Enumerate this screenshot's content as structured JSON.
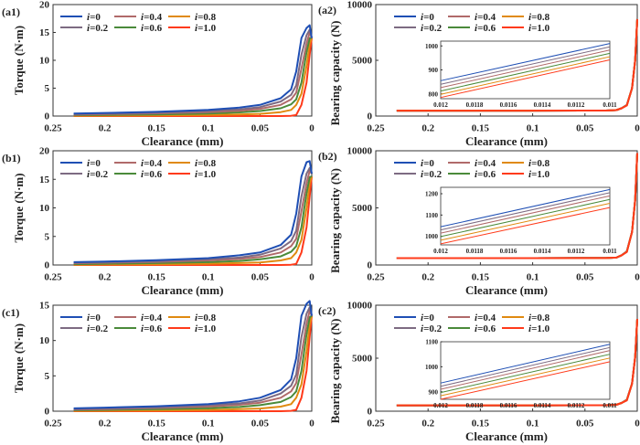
{
  "chart_data": [
    {
      "panel": "(a1)",
      "type": "line",
      "xlabel": "Clearance (mm)",
      "ylabel": "Torque (N·m)",
      "xlim": [
        0.25,
        0
      ],
      "ylim": [
        0,
        20
      ],
      "x_reversed": true,
      "xticks": [
        "0.25",
        "0.2",
        "0.15",
        "0.1",
        "0.05",
        "0"
      ],
      "yticks": [
        "0",
        "5",
        "10",
        "15",
        "20"
      ],
      "x": [
        0.23,
        0.2,
        0.15,
        0.1,
        0.07,
        0.05,
        0.03,
        0.02,
        0.015,
        0.01,
        0.005,
        0.002,
        0
      ],
      "series": [
        {
          "name": "i=0",
          "values": [
            0.45,
            0.55,
            0.75,
            1.1,
            1.5,
            2.0,
            3.2,
            4.8,
            8,
            14,
            15.8,
            16.3,
            14
          ]
        },
        {
          "name": "i=0.2",
          "values": [
            0.35,
            0.45,
            0.6,
            0.9,
            1.2,
            1.6,
            2.6,
            3.8,
            5.5,
            11,
            14.5,
            15.5,
            14
          ]
        },
        {
          "name": "i=0.4",
          "values": [
            0.25,
            0.35,
            0.5,
            0.7,
            0.95,
            1.3,
            2.0,
            3.0,
            4.2,
            8.5,
            13,
            15,
            14
          ]
        },
        {
          "name": "i=0.6",
          "values": [
            0.15,
            0.2,
            0.3,
            0.45,
            0.65,
            0.9,
            1.4,
            2.1,
            3,
            6,
            11.5,
            14,
            14
          ]
        },
        {
          "name": "i=0.8",
          "values": [
            0.05,
            0.08,
            0.12,
            0.2,
            0.3,
            0.4,
            0.7,
            1.1,
            2.0,
            4,
            9,
            13,
            14
          ]
        },
        {
          "name": "i=1.0",
          "values": [
            0,
            0,
            0,
            0,
            0,
            0,
            0,
            0.05,
            0.2,
            2,
            6,
            11,
            14
          ]
        }
      ]
    },
    {
      "panel": "(a2)",
      "type": "line",
      "xlabel": "Clearance (mm)",
      "ylabel": "Bearing capacity (N)",
      "xlim": [
        0.25,
        0
      ],
      "ylim": [
        0,
        10000
      ],
      "x_reversed": true,
      "xticks": [
        "0.25",
        "0.2",
        "0.15",
        "0.1",
        "0.05",
        "0"
      ],
      "yticks": [
        "0",
        "5000",
        "10000"
      ],
      "x": [
        0.23,
        0.1,
        0.03,
        0.02,
        0.015,
        0.01,
        0.005,
        0.002,
        0
      ],
      "series": [
        {
          "name": "i=0",
          "values": [
            480,
            480,
            490,
            530,
            700,
            1000,
            2500,
            5000,
            8700
          ]
        },
        {
          "name": "i=0.2",
          "values": [
            480,
            480,
            490,
            530,
            700,
            990,
            2500,
            5000,
            8700
          ]
        },
        {
          "name": "i=0.4",
          "values": [
            480,
            480,
            490,
            530,
            700,
            980,
            2500,
            5000,
            8700
          ]
        },
        {
          "name": "i=0.6",
          "values": [
            480,
            480,
            490,
            530,
            700,
            970,
            2500,
            5000,
            8700
          ]
        },
        {
          "name": "i=0.8",
          "values": [
            480,
            480,
            490,
            530,
            700,
            960,
            2500,
            5000,
            8700
          ]
        },
        {
          "name": "i=1.0",
          "values": [
            480,
            480,
            490,
            530,
            700,
            950,
            2500,
            5000,
            8700
          ]
        }
      ],
      "inset": {
        "xlim": [
          0.012,
          0.011
        ],
        "ylim": [
          780,
          1020
        ],
        "xticks": [
          "0.012",
          "0.0118",
          "0.0116",
          "0.0114",
          "0.0112",
          "0.011"
        ],
        "yticks": [
          "800",
          "900",
          "1000"
        ],
        "x": [
          0.012,
          0.011
        ],
        "series": [
          [
            855,
            1010
          ],
          [
            840,
            996
          ],
          [
            826,
            983
          ],
          [
            812,
            969
          ],
          [
            798,
            955
          ],
          [
            785,
            942
          ]
        ]
      }
    },
    {
      "panel": "(b1)",
      "type": "line",
      "xlabel": "Clearance (mm)",
      "ylabel": "Torque (N·m)",
      "xlim": [
        0.25,
        0
      ],
      "ylim": [
        0,
        20
      ],
      "x_reversed": true,
      "xticks": [
        "0.25",
        "0.2",
        "0.15",
        "0.1",
        "0.05",
        "0"
      ],
      "yticks": [
        "0",
        "5",
        "10",
        "15",
        "20"
      ],
      "x": [
        0.23,
        0.2,
        0.15,
        0.1,
        0.07,
        0.05,
        0.03,
        0.02,
        0.015,
        0.01,
        0.005,
        0.002,
        0
      ],
      "series": [
        {
          "name": "i=0",
          "values": [
            0.5,
            0.6,
            0.85,
            1.2,
            1.7,
            2.2,
            3.5,
            5.3,
            9,
            15.5,
            18,
            18.2,
            16
          ]
        },
        {
          "name": "i=0.2",
          "values": [
            0.4,
            0.5,
            0.65,
            1.0,
            1.3,
            1.8,
            2.9,
            4.2,
            6,
            12,
            16,
            17,
            16
          ]
        },
        {
          "name": "i=0.4",
          "values": [
            0.3,
            0.4,
            0.55,
            0.8,
            1.05,
            1.4,
            2.2,
            3.3,
            4.6,
            9.4,
            14.3,
            16.5,
            16
          ]
        },
        {
          "name": "i=0.6",
          "values": [
            0.15,
            0.22,
            0.33,
            0.5,
            0.7,
            1.0,
            1.5,
            2.3,
            3.3,
            6.6,
            12.6,
            15.4,
            15.5
          ]
        },
        {
          "name": "i=0.8",
          "values": [
            0.05,
            0.09,
            0.13,
            0.22,
            0.33,
            0.44,
            0.8,
            1.2,
            2.2,
            4.4,
            10,
            14.3,
            15.5
          ]
        },
        {
          "name": "i=1.0",
          "values": [
            0,
            0,
            0,
            0,
            0,
            0,
            0,
            0.05,
            0.2,
            2.2,
            6.6,
            12,
            15.5
          ]
        }
      ]
    },
    {
      "panel": "(b2)",
      "type": "line",
      "xlabel": "Clearance (mm)",
      "ylabel": "Bearing capacity (N)",
      "xlim": [
        0.25,
        0
      ],
      "ylim": [
        0,
        10000
      ],
      "x_reversed": true,
      "xticks": [
        "0.25",
        "0.2",
        "0.15",
        "0.1",
        "0.05",
        "0"
      ],
      "yticks": [
        "0",
        "5000",
        "10000"
      ],
      "x": [
        0.23,
        0.1,
        0.03,
        0.02,
        0.015,
        0.01,
        0.005,
        0.002,
        0
      ],
      "series": [
        {
          "name": "i=0",
          "values": [
            600,
            600,
            610,
            650,
            850,
            1200,
            2900,
            5700,
            9800
          ]
        },
        {
          "name": "i=0.2",
          "values": [
            600,
            600,
            610,
            650,
            850,
            1190,
            2900,
            5700,
            9800
          ]
        },
        {
          "name": "i=0.4",
          "values": [
            600,
            600,
            610,
            650,
            850,
            1180,
            2900,
            5700,
            9800
          ]
        },
        {
          "name": "i=0.6",
          "values": [
            600,
            600,
            610,
            650,
            850,
            1165,
            2900,
            5700,
            9800
          ]
        },
        {
          "name": "i=0.8",
          "values": [
            600,
            600,
            610,
            650,
            850,
            1150,
            2900,
            5700,
            9800
          ]
        },
        {
          "name": "i=1.0",
          "values": [
            600,
            600,
            610,
            650,
            850,
            1135,
            2900,
            5700,
            9800
          ]
        }
      ],
      "inset": {
        "xlim": [
          0.012,
          0.011
        ],
        "ylim": [
          960,
          1230
        ],
        "xticks": [
          "0.012",
          "0.0118",
          "0.0116",
          "0.0114",
          "0.0112",
          "0.011"
        ],
        "yticks": [
          "1000",
          "1100",
          "1200"
        ],
        "x": [
          0.012,
          0.011
        ],
        "series": [
          [
            1045,
            1220
          ],
          [
            1030,
            1205
          ],
          [
            1015,
            1190
          ],
          [
            999,
            1173
          ],
          [
            982,
            1155
          ],
          [
            965,
            1135
          ]
        ]
      }
    },
    {
      "panel": "(c1)",
      "type": "line",
      "xlabel": "Clearance (mm)",
      "ylabel": "Torque (N·m)",
      "xlim": [
        0.25,
        0
      ],
      "ylim": [
        0,
        15
      ],
      "x_reversed": true,
      "xticks": [
        "0.25",
        "0.2",
        "0.15",
        "0.1",
        "0.05",
        "0"
      ],
      "yticks": [
        "0",
        "5",
        "10",
        "15"
      ],
      "x": [
        0.23,
        0.2,
        0.15,
        0.1,
        0.07,
        0.05,
        0.03,
        0.02,
        0.015,
        0.01,
        0.005,
        0.002,
        0
      ],
      "series": [
        {
          "name": "i=0",
          "values": [
            0.4,
            0.5,
            0.7,
            1.0,
            1.4,
            1.9,
            3.0,
            4.5,
            7.5,
            13.5,
            15.2,
            15.6,
            13.5
          ]
        },
        {
          "name": "i=0.2",
          "values": [
            0.3,
            0.4,
            0.55,
            0.85,
            1.1,
            1.5,
            2.5,
            3.6,
            5.2,
            10.5,
            13.8,
            14.7,
            13.5
          ]
        },
        {
          "name": "i=0.4",
          "values": [
            0.22,
            0.3,
            0.45,
            0.65,
            0.9,
            1.2,
            1.9,
            2.8,
            4.0,
            8,
            12.4,
            14.2,
            13.5
          ]
        },
        {
          "name": "i=0.6",
          "values": [
            0.13,
            0.18,
            0.28,
            0.43,
            0.6,
            0.85,
            1.3,
            2.0,
            2.8,
            5.7,
            10.9,
            13.3,
            13.5
          ]
        },
        {
          "name": "i=0.8",
          "values": [
            0.05,
            0.07,
            0.1,
            0.18,
            0.28,
            0.38,
            0.65,
            1.0,
            1.9,
            3.8,
            8.5,
            12.3,
            13.5
          ]
        },
        {
          "name": "i=1.0",
          "values": [
            0,
            0,
            0,
            0,
            0,
            0,
            0,
            0.05,
            0.2,
            1.9,
            5.7,
            10.5,
            13.5
          ]
        }
      ]
    },
    {
      "panel": "(c2)",
      "type": "line",
      "xlabel": "Clearance (mm)",
      "ylabel": "Bearing capacity (N)",
      "xlim": [
        0.25,
        0
      ],
      "ylim": [
        0,
        10000
      ],
      "x_reversed": true,
      "xticks": [
        "0.25",
        "0.2",
        "0.15",
        "0.1",
        "0.05",
        "0"
      ],
      "yticks": [
        "0",
        "5000",
        "10000"
      ],
      "x": [
        0.23,
        0.1,
        0.03,
        0.02,
        0.015,
        0.01,
        0.005,
        0.002,
        0
      ],
      "series": [
        {
          "name": "i=0",
          "values": [
            550,
            550,
            560,
            600,
            780,
            1090,
            2600,
            5100,
            8700
          ]
        },
        {
          "name": "i=0.2",
          "values": [
            550,
            550,
            560,
            600,
            780,
            1080,
            2600,
            5100,
            8700
          ]
        },
        {
          "name": "i=0.4",
          "values": [
            550,
            550,
            560,
            600,
            780,
            1070,
            2600,
            5100,
            8700
          ]
        },
        {
          "name": "i=0.6",
          "values": [
            550,
            550,
            560,
            600,
            780,
            1055,
            2600,
            5100,
            8700
          ]
        },
        {
          "name": "i=0.8",
          "values": [
            550,
            550,
            560,
            600,
            780,
            1040,
            2600,
            5100,
            8700
          ]
        },
        {
          "name": "i=1.0",
          "values": [
            550,
            550,
            560,
            600,
            780,
            1020,
            2600,
            5100,
            8700
          ]
        }
      ],
      "inset": {
        "xlim": [
          0.012,
          0.011
        ],
        "ylim": [
          870,
          1100
        ],
        "xticks": [
          "0.012",
          "0.0118",
          "0.0116",
          "0.0114",
          "0.0112",
          "0.011"
        ],
        "yticks": [
          "900",
          "1000",
          "1100"
        ],
        "x": [
          0.012,
          0.011
        ],
        "series": [
          [
            935,
            1090
          ],
          [
            922,
            1077
          ],
          [
            910,
            1065
          ],
          [
            897,
            1050
          ],
          [
            884,
            1035
          ],
          [
            870,
            1020
          ]
        ]
      }
    }
  ],
  "legend": {
    "placement": "top-left",
    "entries": [
      {
        "prefix": "i",
        "value": "=0"
      },
      {
        "prefix": "i",
        "value": "=0.2"
      },
      {
        "prefix": "i",
        "value": "=0.4"
      },
      {
        "prefix": "i",
        "value": "=0.6"
      },
      {
        "prefix": "i",
        "value": "=0.8"
      },
      {
        "prefix": "i",
        "value": "=1.0"
      }
    ]
  },
  "colors": [
    "#1f4fb4",
    "#7d6b82",
    "#b06a6a",
    "#4a8a3a",
    "#e08a10",
    "#ff3a1a"
  ]
}
